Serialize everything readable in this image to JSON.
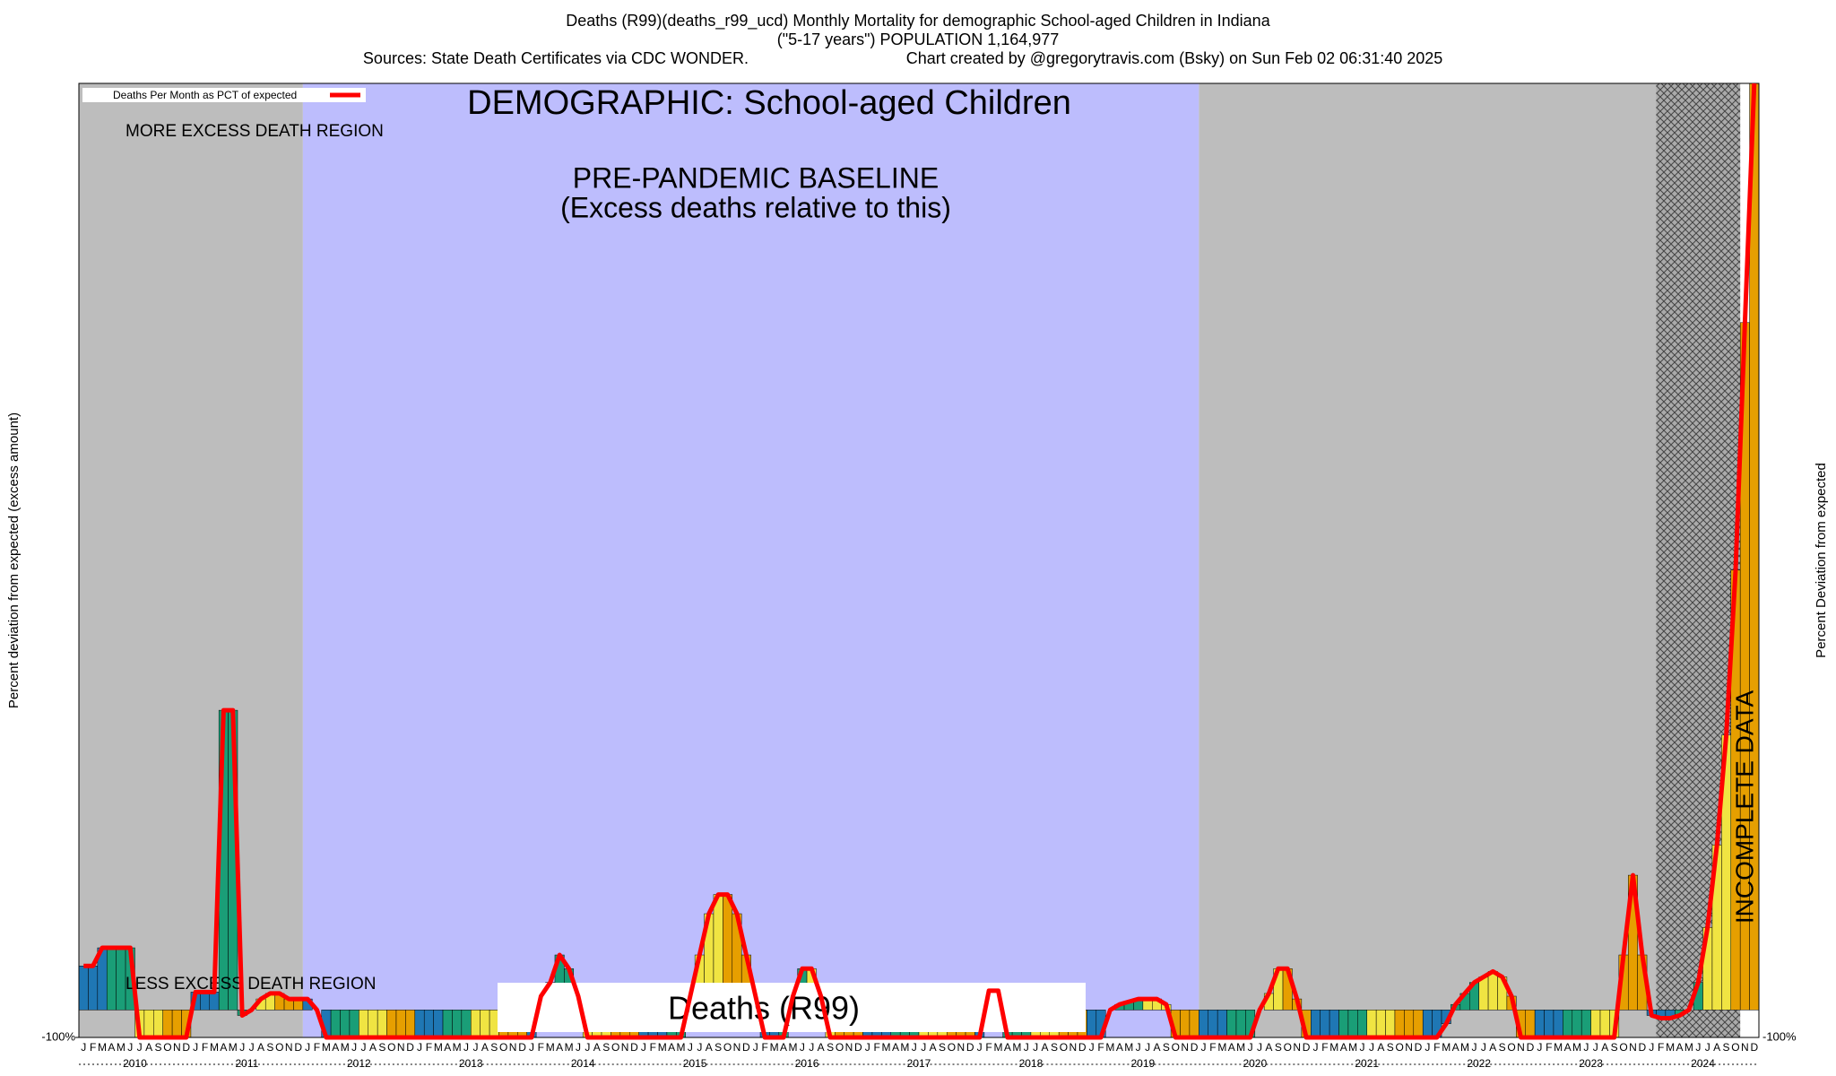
{
  "chart_data": {
    "type": "bar",
    "title": "Deaths (R99)(deaths_r99_ucd) Monthly Mortality for demographic School-aged Children in Indiana",
    "subtitle": "(\"5-17 years\") POPULATION 1,164,977",
    "sources": "Sources: State Death Certificates via CDC WONDER.",
    "credit": "Chart created by @gregorytravis.com (Bsky) on Sun Feb 02 06:31:40 2025",
    "y_label": "Percent deviation from expected (excess amount)",
    "y2_label": "Percent Deviation from expected",
    "banner": "DEMOGRAPHIC: School-aged Children",
    "more_region": "MORE EXCESS DEATH REGION",
    "less_region": "LESS EXCESS DEATH REGION",
    "baseline_title": "PRE-PANDEMIC BASELINE",
    "baseline_note": "(Excess deaths relative to this)",
    "incomplete": "INCOMPLETE DATA",
    "bottom_label": "Deaths (R99)",
    "legend_label": "Deaths Per Month as PCT of expected",
    "line_color": "#ff0000",
    "month_colors": [
      "#1f77b4",
      "#1f77b4",
      "#1f77b4",
      "#1a9e77",
      "#1a9e77",
      "#1a9e77",
      "#f0e442",
      "#f0e442",
      "#f0e442",
      "#e69f00",
      "#e69f00",
      "#e69f00"
    ],
    "years": [
      "2010",
      "2011",
      "2012",
      "2013",
      "2014",
      "2015",
      "2016",
      "2017",
      "2018",
      "2019",
      "2020",
      "2021",
      "2022",
      "2023",
      "2024"
    ],
    "categories": [
      "J",
      "F",
      "M",
      "A",
      "M",
      "J",
      "J",
      "A",
      "S",
      "O",
      "N",
      "D",
      "J",
      "F",
      "M",
      "A",
      "M",
      "J",
      "J",
      "A",
      "S",
      "O",
      "N",
      "D",
      "J",
      "F",
      "M",
      "A",
      "M",
      "J",
      "J",
      "A",
      "S",
      "O",
      "N",
      "D",
      "J",
      "F",
      "M",
      "A",
      "M",
      "J",
      "J",
      "A",
      "S",
      "O",
      "N",
      "D",
      "J",
      "F",
      "M",
      "A",
      "M",
      "J",
      "J",
      "A",
      "S",
      "O",
      "N",
      "D",
      "J",
      "F",
      "M",
      "A",
      "M",
      "J",
      "J",
      "A",
      "S",
      "O",
      "N",
      "D",
      "J",
      "F",
      "M",
      "A",
      "M",
      "J",
      "J",
      "A",
      "S",
      "O",
      "N",
      "D",
      "J",
      "F",
      "M",
      "A",
      "M",
      "J",
      "J",
      "A",
      "S",
      "O",
      "N",
      "D",
      "J",
      "F",
      "M",
      "A",
      "M",
      "J",
      "J",
      "A",
      "S",
      "O",
      "N",
      "D",
      "J",
      "F",
      "M",
      "A",
      "M",
      "J",
      "J",
      "A",
      "S",
      "O",
      "N",
      "D",
      "J",
      "F",
      "M",
      "A",
      "M",
      "J",
      "J",
      "A",
      "S",
      "O",
      "N",
      "D",
      "J",
      "F",
      "M",
      "A",
      "M",
      "J",
      "J",
      "A",
      "S",
      "O",
      "N",
      "D",
      "J",
      "F",
      "M",
      "A",
      "M",
      "J",
      "J",
      "A",
      "S",
      "O",
      "N",
      "D",
      "J",
      "F",
      "M",
      "A",
      "M",
      "J",
      "J",
      "A",
      "S",
      "O",
      "N",
      "D",
      "J",
      "F",
      "M",
      "A",
      "M",
      "J",
      "J",
      "A",
      "S",
      "O",
      "N",
      "D"
    ],
    "values": [
      160,
      160,
      226,
      226,
      226,
      226,
      -100,
      -100,
      -100,
      -100,
      -100,
      -100,
      65,
      65,
      65,
      1090,
      1090,
      -20,
      0,
      40,
      60,
      60,
      40,
      40,
      40,
      0,
      -100,
      -100,
      -100,
      -100,
      -100,
      -100,
      -100,
      -100,
      -100,
      -100,
      -100,
      -100,
      -100,
      -100,
      -100,
      -100,
      -100,
      -100,
      -100,
      -100,
      -100,
      -100,
      -100,
      50,
      100,
      200,
      150,
      50,
      -100,
      -100,
      -100,
      -100,
      -100,
      -100,
      -100,
      -100,
      -100,
      -100,
      -100,
      50,
      200,
      350,
      420,
      420,
      350,
      200,
      50,
      -100,
      -100,
      -100,
      50,
      150,
      150,
      50,
      -100,
      -100,
      -100,
      -100,
      -100,
      -100,
      -100,
      -100,
      -100,
      -100,
      -100,
      -100,
      -100,
      -100,
      -100,
      -100,
      -100,
      70,
      70,
      -100,
      -100,
      -100,
      -100,
      -100,
      -100,
      -100,
      -100,
      -100,
      -100,
      -100,
      0,
      20,
      30,
      40,
      40,
      40,
      20,
      -100,
      -100,
      -100,
      -100,
      -100,
      -100,
      -100,
      -100,
      -100,
      0,
      60,
      150,
      150,
      40,
      -100,
      -100,
      -100,
      -100,
      -100,
      -100,
      -100,
      -100,
      -100,
      -100,
      -100,
      -100,
      -100,
      -100,
      -100,
      -50,
      20,
      60,
      100,
      120,
      140,
      120,
      50,
      -100,
      -100,
      -100,
      -100,
      -100,
      -100,
      -100,
      -100,
      -100,
      -100,
      -100,
      200,
      490,
      200,
      -20,
      -30,
      -30,
      -20,
      0,
      100,
      300,
      600,
      1000,
      1600,
      2500,
      3370
    ],
    "ylim": [
      -100,
      3370
    ],
    "yticks": [
      {
        "value": -100,
        "label": "-100%"
      }
    ]
  }
}
